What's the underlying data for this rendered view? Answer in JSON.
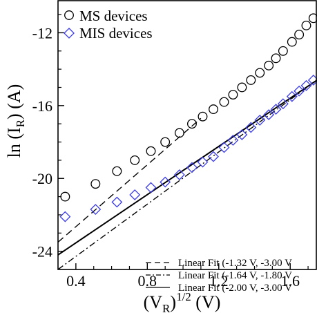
{
  "chart_data": {
    "type": "scatter",
    "title": "",
    "xlabel": "(V_R)^1/2 (V)",
    "xlabel_parts": {
      "main": "(V",
      "sub": "R",
      "close": ")",
      "sup": "1/2",
      "unit": " (V)"
    },
    "ylabel": "ln (I_R) (A)",
    "ylabel_parts": {
      "main": "ln (I",
      "sub": "R",
      "unit": ") (A)"
    },
    "xlim": [
      0.3,
      1.75
    ],
    "ylim": [
      -25,
      -10.2
    ],
    "x_ticks": [
      0.4,
      0.8,
      1.2,
      1.6
    ],
    "x_tick_labels": [
      "0.4",
      "0.8",
      "1.2",
      "1.6"
    ],
    "y_ticks": [
      -24,
      -20,
      -16,
      -12
    ],
    "y_tick_labels": [
      "-24",
      "-20",
      "-16",
      "-12"
    ],
    "grid": false,
    "legend_markers": {
      "position": "top-left",
      "entries": [
        {
          "label": "MS devices",
          "marker": "circle"
        },
        {
          "label": "MIS devices",
          "marker": "diamond",
          "color": "#3a3ae6"
        }
      ]
    },
    "legend_lines": {
      "position": "bottom-right",
      "entries": [
        {
          "label": "Linear Fit (-1.32 V, -3.00 V",
          "dash": "dashed"
        },
        {
          "label": "Linear Fit (-1.64 V, -1.80 V",
          "dash": "dashdot"
        },
        {
          "label": "Linear Fit (-2.00 V, -3.00 V",
          "dash": "solid"
        }
      ]
    },
    "series": [
      {
        "name": "MS devices",
        "marker": "circle",
        "color": "#000000",
        "x": [
          0.34,
          0.51,
          0.63,
          0.73,
          0.82,
          0.9,
          0.98,
          1.05,
          1.11,
          1.17,
          1.23,
          1.28,
          1.33,
          1.38,
          1.43,
          1.48,
          1.52,
          1.56,
          1.61,
          1.65,
          1.69,
          1.73
        ],
        "y": [
          -21.0,
          -20.3,
          -19.6,
          -19.0,
          -18.5,
          -18.0,
          -17.5,
          -17.0,
          -16.6,
          -16.2,
          -15.8,
          -15.4,
          -15.0,
          -14.6,
          -14.2,
          -13.8,
          -13.4,
          -13.0,
          -12.5,
          -12.1,
          -11.6,
          -11.2
        ]
      },
      {
        "name": "MIS devices",
        "marker": "diamond",
        "color": "#3a3ae6",
        "x": [
          0.34,
          0.51,
          0.63,
          0.73,
          0.82,
          0.9,
          0.98,
          1.05,
          1.11,
          1.17,
          1.23,
          1.28,
          1.33,
          1.38,
          1.43,
          1.48,
          1.52,
          1.56,
          1.61,
          1.65,
          1.69,
          1.73
        ],
        "y": [
          -22.1,
          -21.7,
          -21.3,
          -20.9,
          -20.5,
          -20.2,
          -19.8,
          -19.4,
          -19.1,
          -18.8,
          -18.3,
          -17.9,
          -17.6,
          -17.2,
          -16.8,
          -16.5,
          -16.2,
          -15.9,
          -15.5,
          -15.2,
          -14.9,
          -14.6
        ]
      }
    ],
    "fit_lines": [
      {
        "label": "Linear Fit (-1.32 V, -3.00 V",
        "dash": "dashed",
        "x": [
          0.3,
          1.1
        ],
        "y": [
          -23.5,
          -16.7
        ]
      },
      {
        "label": "Linear Fit (-1.64 V, -1.80 V",
        "dash": "dashdot",
        "x": [
          0.3,
          1.75
        ],
        "y": [
          -25.0,
          -14.6
        ]
      },
      {
        "label": "Linear Fit (-2.00 V, -3.00 V",
        "dash": "solid",
        "x": [
          0.3,
          1.75
        ],
        "y": [
          -24.2,
          -14.6
        ]
      }
    ]
  }
}
